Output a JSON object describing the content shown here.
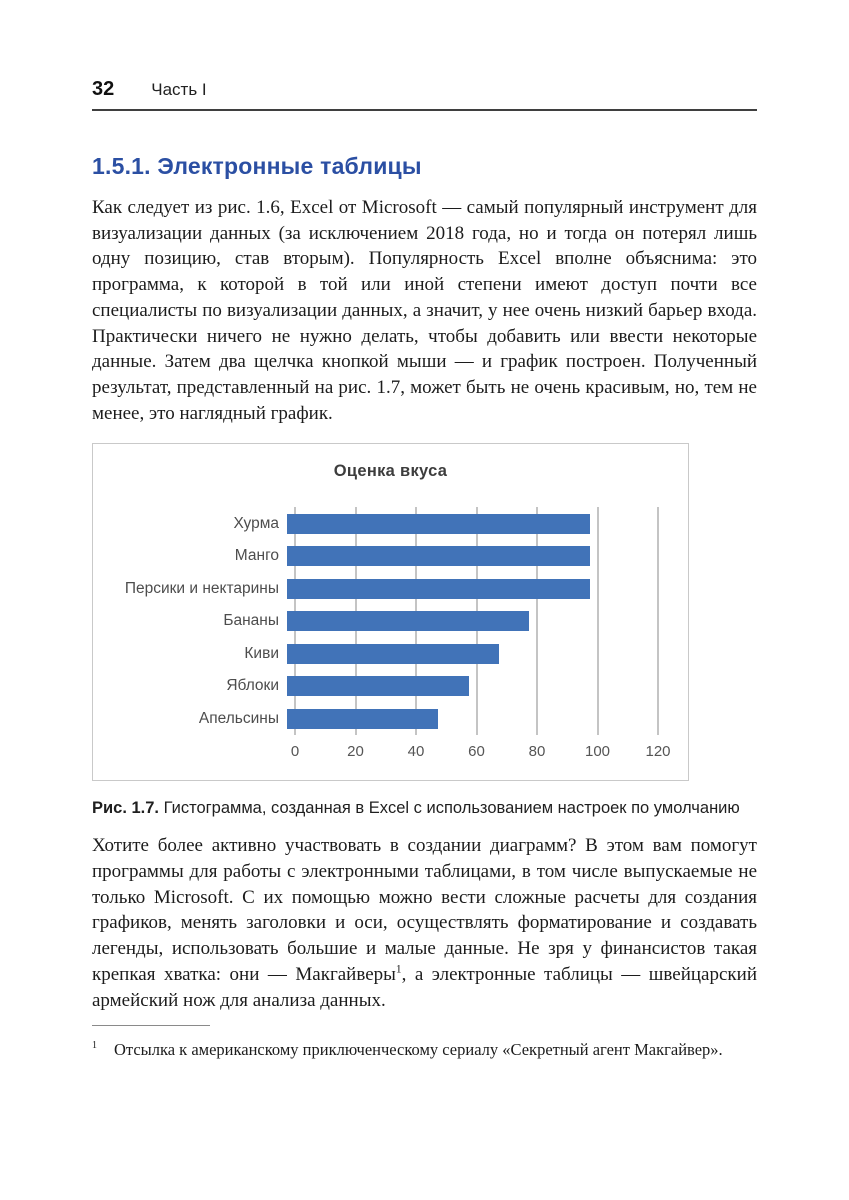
{
  "page": {
    "header": {
      "page_number": "32",
      "part_label": "Часть I"
    },
    "section": {
      "heading": "1.5.1. Электронные таблицы"
    },
    "paragraphs": {
      "p1": "Как следует из рис. 1.6, Excel от Microsoft — самый популярный инструмент для визуализации данных (за исключением 2018 года, но и тогда он потерял лишь одну позицию, став вторым). Популярность Excel вполне объяснима: это программа, к которой в той или иной степени имеют доступ почти все специалисты по визуализации данных, а значит, у нее очень низкий барьер входа. Практически ничего не нужно делать, чтобы добавить или ввести некоторые данные. Затем два щелчка кнопкой мыши — и график построен. Полученный результат, представленный на рис. 1.7, может быть не очень красивым, но, тем не менее, это наглядный график.",
      "p2_before_sup": "Хотите более активно участвовать в создании диаграмм? В этом вам помогут программы для работы с электронными таблицами, в том числе выпускаемые не только Microsoft. С их помощью можно вести сложные расчеты для создания графиков, менять заголовки и оси, осуществлять форматирование и создавать легенды, использовать большие и малые данные. Не зря у финансистов такая крепкая хватка: они — Макгайверы",
      "p2_sup": "1",
      "p2_after_sup": ", а электронные таблицы — швейцарский армейский нож для анализа данных."
    },
    "figure": {
      "caption_label": "Рис. 1.7.",
      "caption_text": " Гистограмма, созданная в Excel с использованием настроек по умолчанию"
    },
    "footnote": {
      "marker": "1",
      "text": "Отсылка к американскому приключенческому сериалу «Секретный агент Макгайвер»."
    }
  },
  "colors": {
    "heading_blue": "#2b4fa3",
    "bar_blue": "#4173b8",
    "gridline_gray": "#8a8a8a",
    "frame_border": "#c9c9c9"
  },
  "chart_data": {
    "type": "bar",
    "orientation": "horizontal",
    "title": "Оценка вкуса",
    "categories": [
      "Хурма",
      "Манго",
      "Персики и нектарины",
      "Бананы",
      "Киви",
      "Яблоки",
      "Апельсины"
    ],
    "values": [
      100,
      100,
      100,
      80,
      70,
      60,
      50
    ],
    "xlabel": "",
    "ylabel": "",
    "xlim": [
      0,
      120
    ],
    "xticks": [
      0,
      20,
      40,
      60,
      80,
      100,
      120
    ],
    "grid": true,
    "legend": false,
    "bar_color": "#4173b8"
  }
}
